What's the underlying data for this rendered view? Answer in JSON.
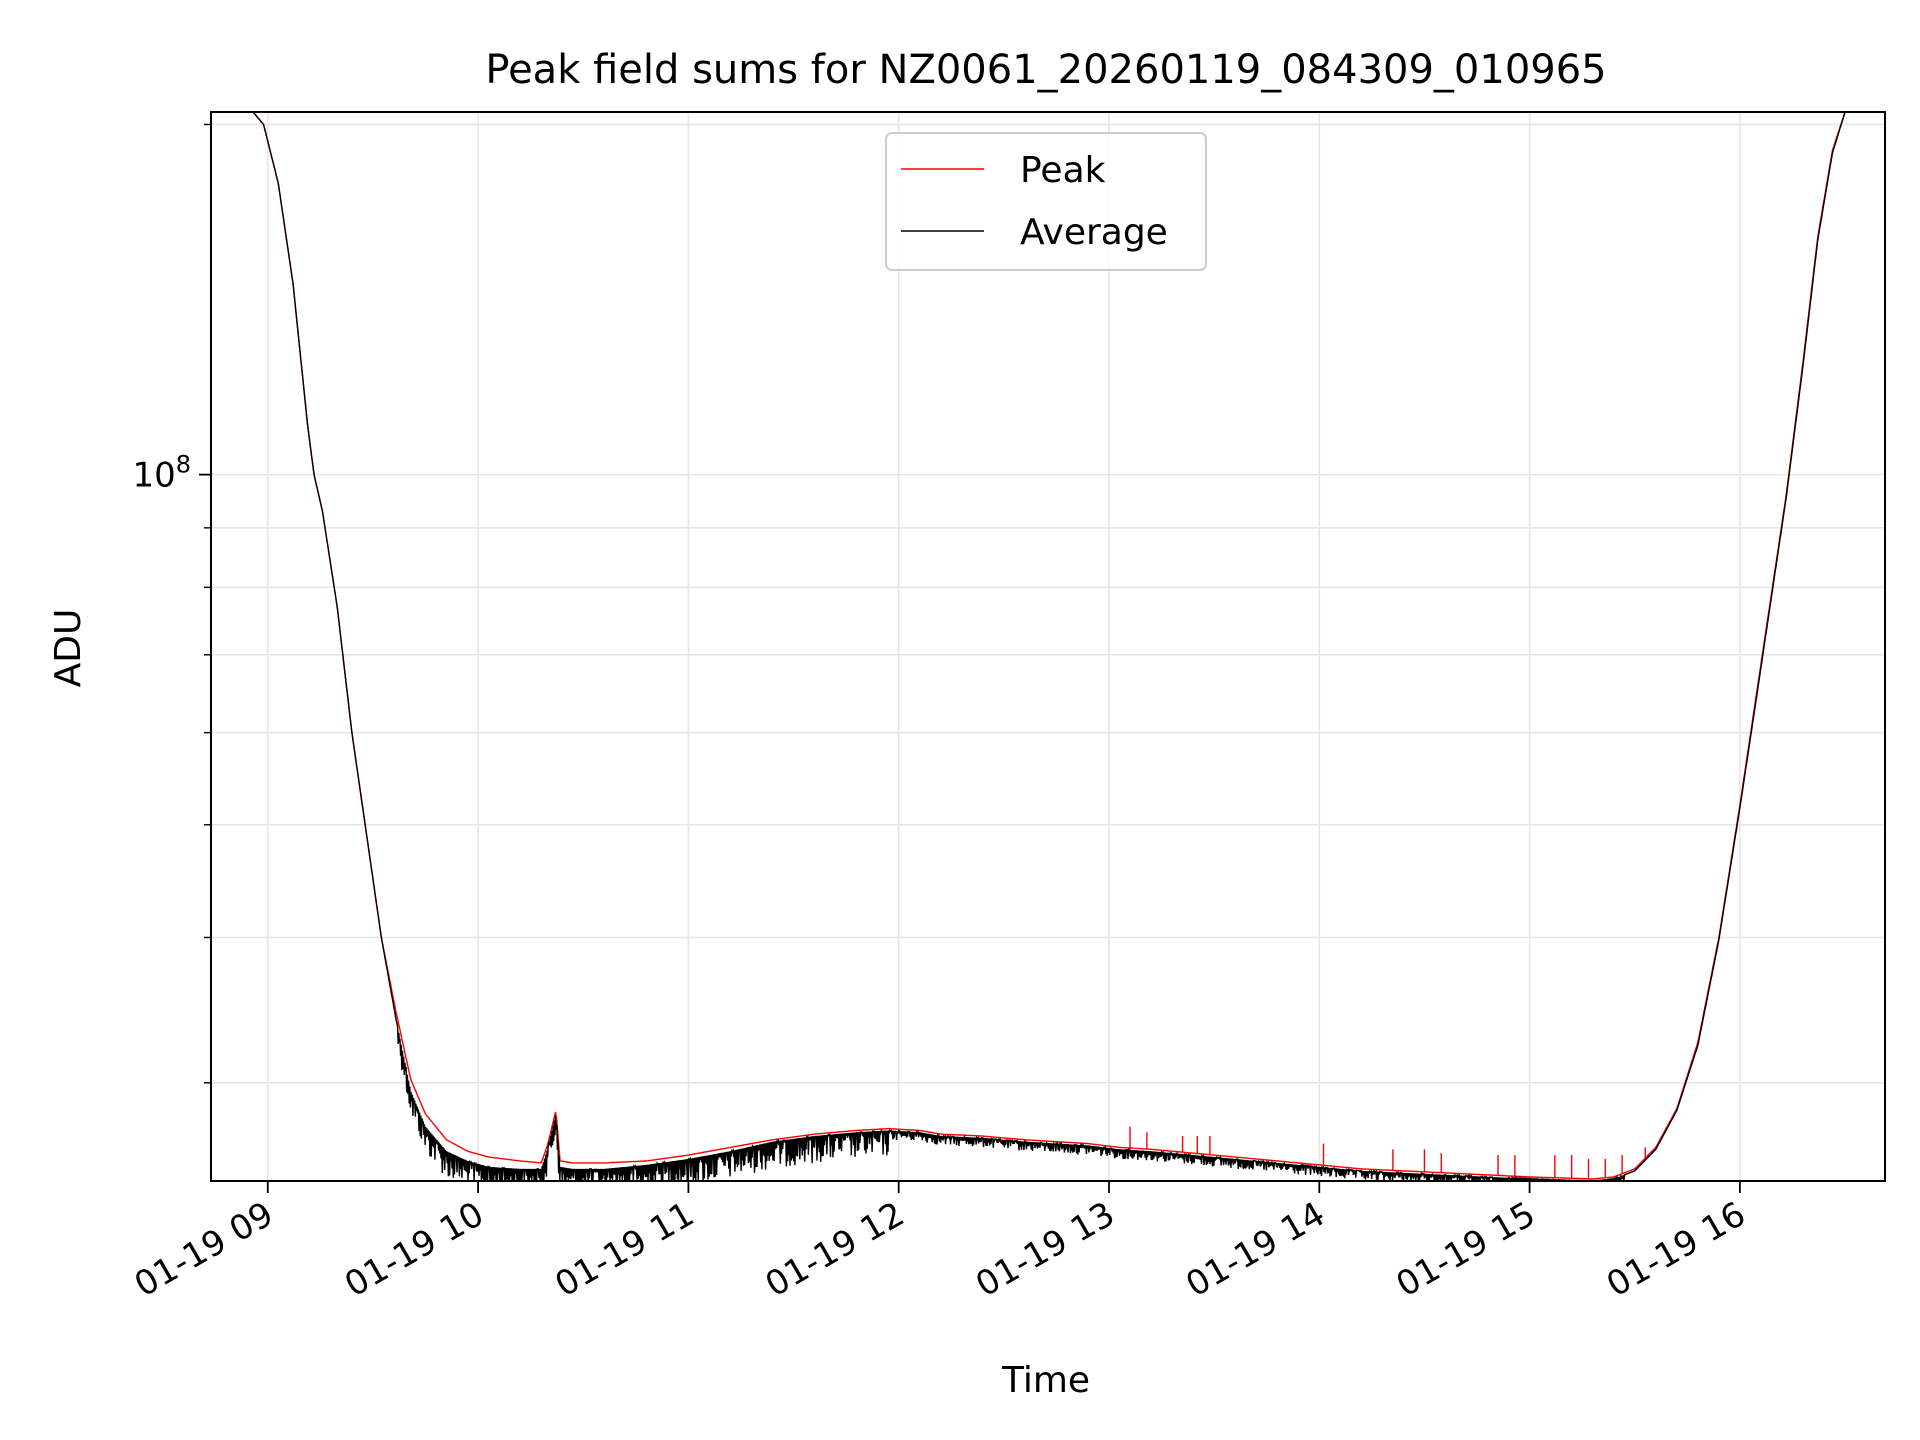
{
  "chart_data": {
    "type": "line",
    "title": "Peak field sums for NZ0061_20260119_084309_010965",
    "xlabel": "Time",
    "ylabel": "ADU",
    "x_unit": "hours since 01-19 00:00",
    "xlim": [
      8.73,
      16.69
    ],
    "ylim": [
      24700000.0,
      205000000.0
    ],
    "yscale": "log",
    "grid": true,
    "legend_position": "top-center",
    "x_ticks": [
      {
        "value": 9,
        "label": "01-19 09"
      },
      {
        "value": 10,
        "label": "01-19 10"
      },
      {
        "value": 11,
        "label": "01-19 11"
      },
      {
        "value": 12,
        "label": "01-19 12"
      },
      {
        "value": 13,
        "label": "01-19 13"
      },
      {
        "value": 14,
        "label": "01-19 14"
      },
      {
        "value": 15,
        "label": "01-19 15"
      },
      {
        "value": 16,
        "label": "01-19 16"
      }
    ],
    "y_major_ticks": [
      {
        "value": 100000000,
        "label": "10",
        "exponent": "8"
      }
    ],
    "y_minor_ticks": [
      30000000,
      40000000,
      50000000,
      60000000,
      70000000,
      80000000,
      90000000,
      200000000
    ],
    "series": [
      {
        "name": "Peak",
        "color": "#ff0000",
        "x": [
          8.93,
          8.98,
          9.05,
          9.12,
          9.19,
          9.22,
          9.26,
          9.33,
          9.4,
          9.47,
          9.54,
          9.61,
          9.68,
          9.75,
          9.85,
          9.95,
          10.05,
          10.2,
          10.3,
          10.33,
          10.37,
          10.39,
          10.45,
          10.6,
          10.8,
          11.0,
          11.2,
          11.4,
          11.6,
          11.8,
          11.95,
          12.1,
          12.2,
          12.4,
          12.6,
          12.75,
          12.9,
          13.05,
          13.2,
          13.4,
          13.6,
          13.8,
          14.0,
          14.2,
          14.4,
          14.6,
          14.8,
          15.0,
          15.15,
          15.3,
          15.4,
          15.5,
          15.6,
          15.7,
          15.8,
          15.9,
          16.0,
          16.08,
          16.15,
          16.22,
          16.3,
          16.37,
          16.44,
          16.5
        ],
        "y": [
          205000000,
          200000000,
          178000000,
          146000000,
          110000000,
          100000000,
          93000000,
          77000000,
          60000000,
          49000000,
          40000000,
          34500000,
          30200000,
          28200000,
          26800000,
          26200000,
          25900000,
          25700000,
          25600000,
          26500000,
          28400000,
          25700000,
          25600000,
          25600000,
          25700000,
          26000000,
          26400000,
          26800000,
          27100000,
          27300000,
          27400000,
          27300000,
          27100000,
          27000000,
          26800000,
          26700000,
          26600000,
          26400000,
          26300000,
          26100000,
          25900000,
          25700000,
          25500000,
          25300000,
          25200000,
          25100000,
          25000000,
          24900000,
          24850000,
          24800000,
          24900000,
          25300000,
          26400000,
          28500000,
          32500000,
          40000000,
          52000000,
          65000000,
          79000000,
          96000000,
          125000000,
          160000000,
          190000000,
          205000000
        ],
        "spikes": [
          [
            13.1,
            27500000.0
          ],
          [
            13.18,
            27200000.0
          ],
          [
            13.35,
            27000000.0
          ],
          [
            13.42,
            27000000.0
          ],
          [
            13.48,
            27000000.0
          ],
          [
            14.02,
            26600000.0
          ],
          [
            14.35,
            26300000.0
          ],
          [
            14.5,
            26300000.0
          ],
          [
            14.58,
            26100000.0
          ],
          [
            14.85,
            26000000.0
          ],
          [
            14.93,
            26000000.0
          ],
          [
            15.12,
            26000000.0
          ],
          [
            15.2,
            26000000.0
          ],
          [
            15.28,
            25800000.0
          ],
          [
            15.36,
            25800000.0
          ],
          [
            15.44,
            26000000.0
          ],
          [
            15.55,
            26400000.0
          ]
        ]
      },
      {
        "name": "Average",
        "color": "#000000",
        "x": [
          8.93,
          8.98,
          9.05,
          9.12,
          9.19,
          9.22,
          9.26,
          9.33,
          9.4,
          9.47,
          9.54,
          9.61,
          9.68,
          9.75,
          9.85,
          9.95,
          10.05,
          10.2,
          10.3,
          10.33,
          10.37,
          10.39,
          10.45,
          10.6,
          10.8,
          11.0,
          11.2,
          11.4,
          11.6,
          11.8,
          11.95,
          12.1,
          12.2,
          12.4,
          12.6,
          12.75,
          12.9,
          13.05,
          13.2,
          13.4,
          13.6,
          13.8,
          14.0,
          14.2,
          14.4,
          14.6,
          14.8,
          15.0,
          15.15,
          15.3,
          15.4,
          15.5,
          15.6,
          15.7,
          15.8,
          15.9,
          16.0,
          16.08,
          16.15,
          16.22,
          16.3,
          16.37,
          16.44,
          16.5
        ],
        "y": [
          205000000,
          200000000,
          178000000,
          146000000,
          110000000,
          100000000,
          93000000,
          77000000,
          60000000,
          49000000,
          40000000,
          34000000,
          29500000,
          27500000,
          26200000,
          25700000,
          25400000,
          25300000,
          25300000,
          26300000,
          28200000,
          25400000,
          25300000,
          25300000,
          25500000,
          25800000,
          26200000,
          26700000,
          27000000,
          27200000,
          27300000,
          27200000,
          27000000,
          26900000,
          26700000,
          26600000,
          26500000,
          26300000,
          26200000,
          26000000,
          25800000,
          25600000,
          25400000,
          25200000,
          25100000,
          25000000,
          24900000,
          24800000,
          24750000,
          24700000,
          24800000,
          25200000,
          26300000,
          28400000,
          32300000,
          39800000,
          51700000,
          64500000,
          78500000,
          95500000,
          124000000,
          159000000,
          189000000,
          205000000
        ],
        "noise_ranges": [
          {
            "x_from": 9.62,
            "x_to": 11.95,
            "depth": 1400000
          },
          {
            "x_from": 11.95,
            "x_to": 15.45,
            "depth": 500000
          }
        ]
      }
    ]
  }
}
